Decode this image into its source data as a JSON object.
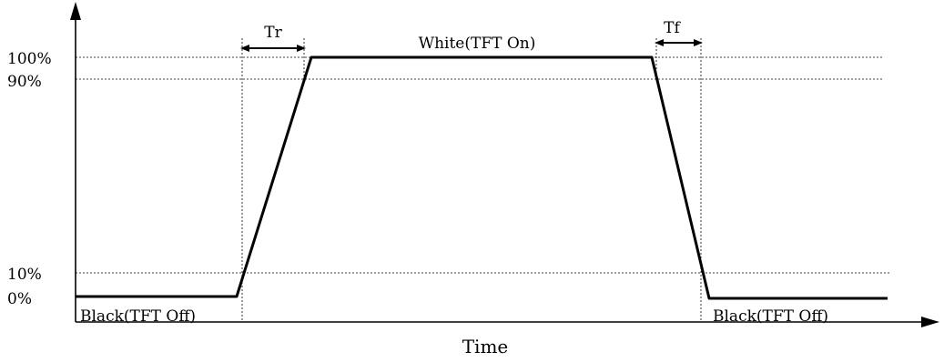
{
  "y_axis": {
    "ticks": [
      {
        "label": "100%",
        "level": 100
      },
      {
        "label": "90%",
        "level": 90
      },
      {
        "label": "10%",
        "level": 10
      },
      {
        "label": "0%",
        "level": 0
      }
    ]
  },
  "x_axis": {
    "label": "Time"
  },
  "labels": {
    "white": "White(TFT On)",
    "black_left": "Black(TFT Off)",
    "black_right": "Black(TFT Off)",
    "rise_time": "Tr",
    "fall_time": "Tf"
  },
  "waveform": {
    "low_level": 0,
    "high_level": 100,
    "transitions": [
      "rise",
      "fall"
    ]
  },
  "colors": {
    "line": "#000000",
    "background": "#ffffff"
  }
}
